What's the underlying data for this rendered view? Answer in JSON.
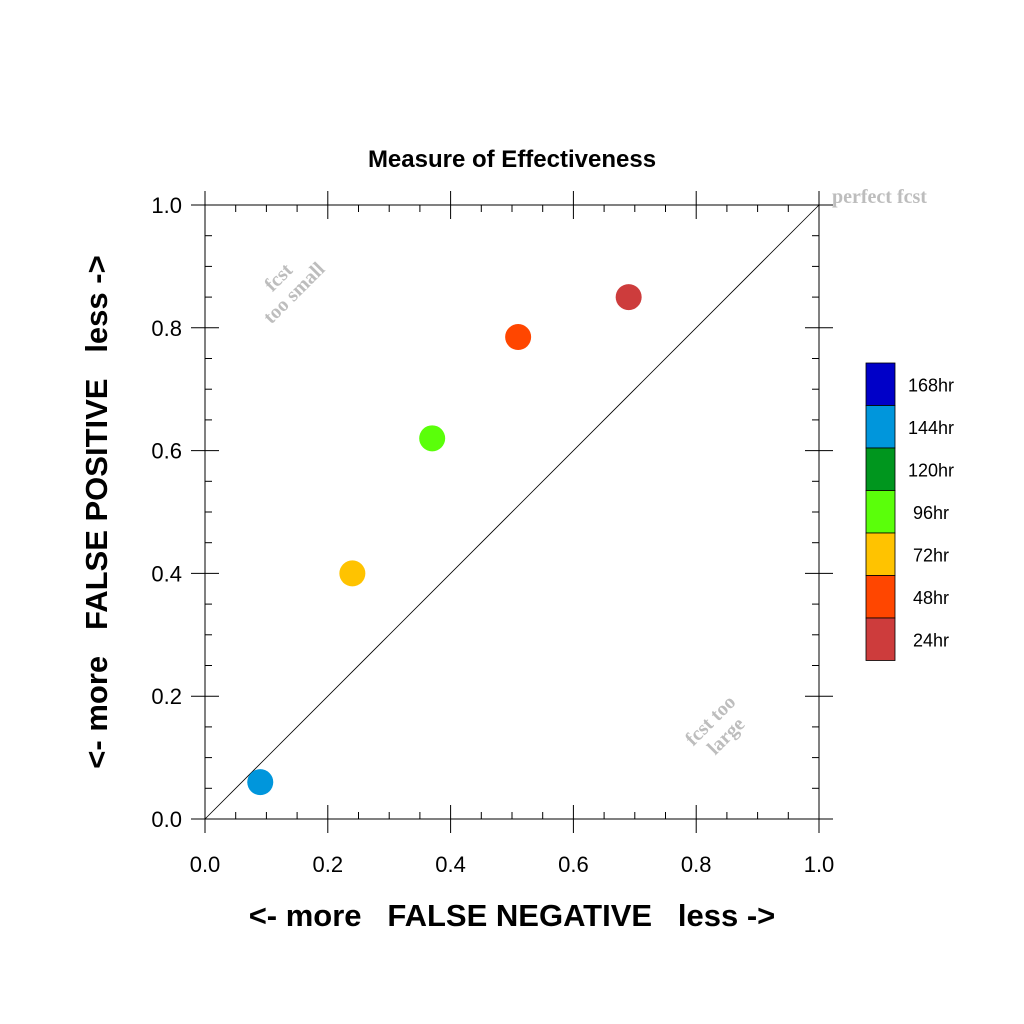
{
  "chart_data": {
    "type": "scatter",
    "title": "Measure of Effectiveness",
    "xlabel": "<- more   FALSE NEGATIVE   less ->",
    "ylabel": "<- more   FALSE POSITIVE   less ->",
    "xlim": [
      0.0,
      1.0
    ],
    "ylim": [
      0.0,
      1.0
    ],
    "x_ticks": [
      "0.0",
      "0.2",
      "0.4",
      "0.6",
      "0.8",
      "1.0"
    ],
    "y_ticks": [
      "0.0",
      "0.2",
      "0.4",
      "0.6",
      "0.8",
      "1.0"
    ],
    "diagonal_line": true,
    "annotations": {
      "perfect": "perfect fcst",
      "too_small_line1": "fcst",
      "too_small_line2": "too small",
      "too_large_line1": "fcst too",
      "too_large_line2": "large"
    },
    "legend": {
      "placement": "right",
      "entries": [
        {
          "label": "168hr",
          "color": "#0000c8"
        },
        {
          "label": "144hr",
          "color": "#0096dc"
        },
        {
          "label": "120hr",
          "color": "#00961e"
        },
        {
          "label": "96hr",
          "color": "#5aff0a"
        },
        {
          "label": "72hr",
          "color": "#ffc300"
        },
        {
          "label": "48hr",
          "color": "#ff4600"
        },
        {
          "label": "24hr",
          "color": "#cd3c3c"
        }
      ]
    },
    "points": [
      {
        "lead": "144hr",
        "x": 0.09,
        "y": 0.06,
        "color": "#0096dc"
      },
      {
        "lead": "72hr",
        "x": 0.24,
        "y": 0.4,
        "color": "#ffc300"
      },
      {
        "lead": "96hr",
        "x": 0.37,
        "y": 0.62,
        "color": "#5aff0a"
      },
      {
        "lead": "48hr",
        "x": 0.51,
        "y": 0.785,
        "color": "#ff4600"
      },
      {
        "lead": "24hr",
        "x": 0.69,
        "y": 0.85,
        "color": "#cd3c3c"
      }
    ]
  }
}
